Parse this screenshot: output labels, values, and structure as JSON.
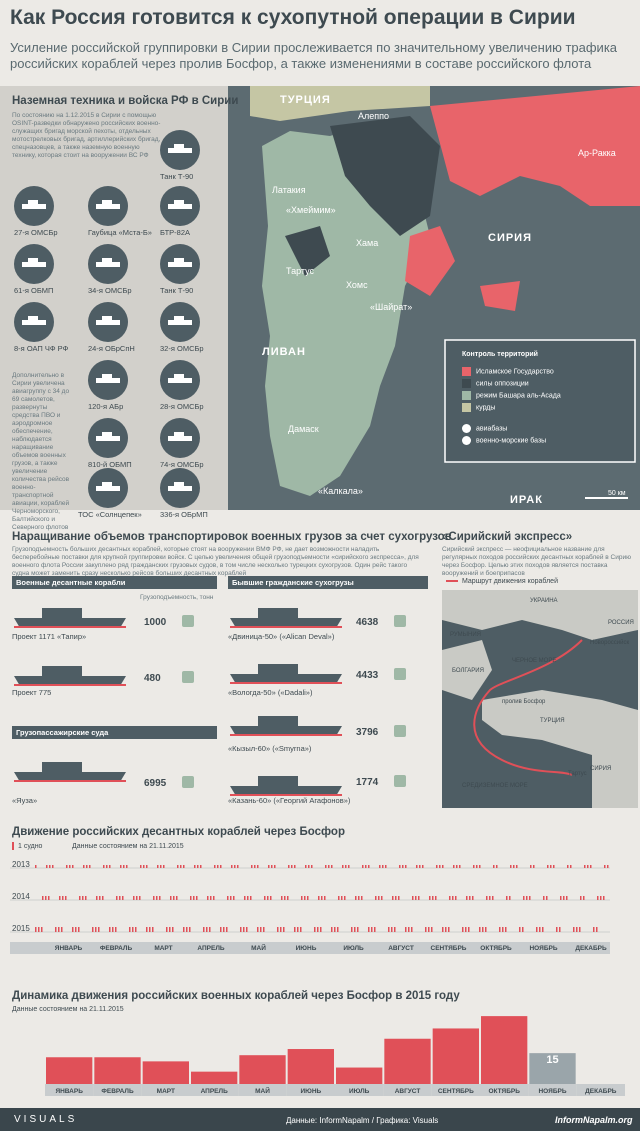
{
  "header": {
    "title": "Как Россия готовится к сухопутной операции в Сирии",
    "subtitle": "Усиление российской группировки в Сирии прослеживается по значительному увеличению трафика российских кораблей через пролив Босфор, а также изменениями в составе российского флота"
  },
  "ground": {
    "heading": "Наземная техника и войска РФ в Сирии",
    "intro": "По состоянию на 1.12.2015 в Сирии с помощью OSINT-разведки обнаружено российских военно-служащих бригад морской пехоты, отдельных мотострелковых бригад, артиллерийских бригад, спецназовцев, а также наземную военную технику, которая стоит на вооружении ВС РФ",
    "note": "Дополнительно в Сирии увеличена авиагруппу с 34 до 69 самолетов, развернуты средства ПВО и аэродромное обеспечение, наблюдается наращивание объемов военных грузов, а также увеличение количества рейсов военно-транспортной авиации, кораблей Черноморского, Балтийского и Северного флотов",
    "units": [
      {
        "label": "Танк Т-90",
        "icon": "tank-icon"
      },
      {
        "label": "27-я ОМСБр",
        "icon": "rifle-icon"
      },
      {
        "label": "Гаубица «Мста-Б»",
        "icon": "howitzer-icon"
      },
      {
        "label": "БТР-82А",
        "icon": "apc-icon"
      },
      {
        "label": "61-я ОБМП",
        "icon": "rifle-icon"
      },
      {
        "label": "34-я ОМСБр",
        "icon": "rifle-icon"
      },
      {
        "label": "Танк Т-90",
        "icon": "tank-icon"
      },
      {
        "label": "8-я ОАП ЧФ РФ",
        "icon": "rifle-icon"
      },
      {
        "label": "24-я ОБрСпН",
        "icon": "rifle-icon"
      },
      {
        "label": "32-я ОМСБр",
        "icon": "rifle-icon"
      },
      {
        "label": "120-я АБр",
        "icon": "rifle-icon"
      },
      {
        "label": "28-я ОМСБр",
        "icon": "rifle-icon"
      },
      {
        "label": "810-й ОБМП",
        "icon": "rifle-icon"
      },
      {
        "label": "74-я ОМСБр",
        "icon": "rifle-icon"
      },
      {
        "label": "ТОС «Солнцепек»",
        "icon": "launcher-icon"
      },
      {
        "label": "336-я ОБрМП",
        "icon": "rifle-icon"
      }
    ]
  },
  "map": {
    "countries": {
      "turkey": "ТУРЦИЯ",
      "syria": "СИРИЯ",
      "lebanon": "ЛИВАН",
      "iraq": "ИРАК"
    },
    "cities": [
      "Алеппо",
      "Ар-Ракка",
      "Латакия",
      "«Хмеймим»",
      "Хама",
      "Тартус",
      "Хомс",
      "«Шайрат»",
      "Дамаск",
      "«Калкала»"
    ],
    "scale": "50 км",
    "legend_title": "Контроль территорий",
    "legend": [
      {
        "label": "Исламское Государство",
        "color": "#e8646a"
      },
      {
        "label": "силы оппозиции",
        "color": "#3e4a50"
      },
      {
        "label": "режим Башара аль-Асада",
        "color": "#9fb8a6"
      },
      {
        "label": "курды",
        "color": "#c5c6a4"
      }
    ],
    "legend_icons": [
      {
        "label": "авиабазы",
        "icon": "airbase-icon"
      },
      {
        "label": "военно-морские базы",
        "icon": "navalbase-icon"
      }
    ],
    "colors": {
      "sea": "#5c6b71",
      "regime": "#9fb8a6",
      "opposition": "#3e4a50",
      "isis": "#e8646a",
      "kurds": "#c5c6a4"
    }
  },
  "cargo": {
    "heading": "Наращивание объемов транспортировок военных грузов за счет сухогрузов",
    "intro": "Грузоподъемность больших десантных кораблей, которые стоят на вооружении ВМФ РФ, не дает возможности наладить бесперебойные поставки для крупной группировки войск. С целью увеличения общей грузоподъемности «сирийского экспресса», для военного флота России закуплено ряд гражданских грузовых судов, в том числе несколько турецких сухогрузов. Один рейс такого судна может заменить сразу несколько рейсов больших десантных кораблей",
    "military_head": "Военные десантные корабли",
    "capacity_label": "Грузоподъемность, тонн",
    "civil_head": "Бывшие гражданские сухогрузы",
    "passenger_head": "Грузопассажирские суда",
    "ships": [
      {
        "name": "Проект 1171 «Тапир»",
        "value": "1000"
      },
      {
        "name": "Проект 775",
        "value": "480"
      },
      {
        "name": "«Яуза»",
        "value": "6995"
      },
      {
        "name": "«Двиница-50» («Alican Deval»)",
        "value": "4638"
      },
      {
        "name": "«Вологда-50» («Dadali»)",
        "value": "4433"
      },
      {
        "name": "«Кызыл-60» («Smyrna»)",
        "value": "3796"
      },
      {
        "name": "«Казань-60» («Георгий Агафонов»)",
        "value": "1774"
      }
    ]
  },
  "express": {
    "heading": "«Сирийский экспресс»",
    "intro": "Сирийский экспресс — неофициальное название для регулярных походов российских десантных кораблей в Сирию через Босфор. Целью этих походов является поставка вооружений и боеприпасов",
    "route_label": "Маршрут движения кораблей",
    "places": [
      "УКРАИНА",
      "РОССИЯ",
      "РУМЫНИЯ",
      "Новороссийск",
      "ЧЕРНОЕ МОРЕ",
      "БОЛГАРИЯ",
      "пролив Босфор",
      "ТУРЦИЯ",
      "СИРИЯ",
      "СРЕДИЗЕМНОЕ МОРЕ",
      "Тартус"
    ]
  },
  "bosphorus": {
    "heading": "Движение российских десантных кораблей через Босфор",
    "legend": "1 судно",
    "date": "Данные состоянием на 21.11.2015",
    "years": [
      "2013",
      "2014",
      "2015"
    ],
    "months": [
      "ЯНВАРЬ",
      "ФЕВРАЛЬ",
      "МАРТ",
      "АПРЕЛЬ",
      "МАЙ",
      "ИЮНЬ",
      "ИЮЛЬ",
      "АВГУСТ",
      "СЕНТЯБРЬ",
      "ОКТЯБРЬ",
      "НОЯБРЬ",
      "ДЕКАБРЬ"
    ]
  },
  "chart_data": {
    "type": "bar",
    "title": "Динамика движения российских военных кораблей через Босфор в 2015 году",
    "subtitle": "Данные состоянием на 21.11.2015",
    "categories": [
      "ЯНВАРЬ",
      "ФЕВРАЛЬ",
      "МАРТ",
      "АПРЕЛЬ",
      "МАЙ",
      "ИЮНЬ",
      "ИЮЛЬ",
      "АВГУСТ",
      "СЕНТЯБРЬ",
      "ОКТЯБРЬ",
      "НОЯБРЬ",
      "ДЕКАБРЬ"
    ],
    "values": [
      13,
      13,
      11,
      6,
      14,
      17,
      8,
      22,
      27,
      33,
      15,
      null
    ],
    "ylim": [
      0,
      35
    ],
    "colors": {
      "bar": "#e05058",
      "last": "#9aa5aa"
    }
  },
  "footer": {
    "logo": "VISUALS",
    "credits": "Данные: InformNapalm / Графика: Visuals",
    "site": "InformNapalm.org"
  }
}
